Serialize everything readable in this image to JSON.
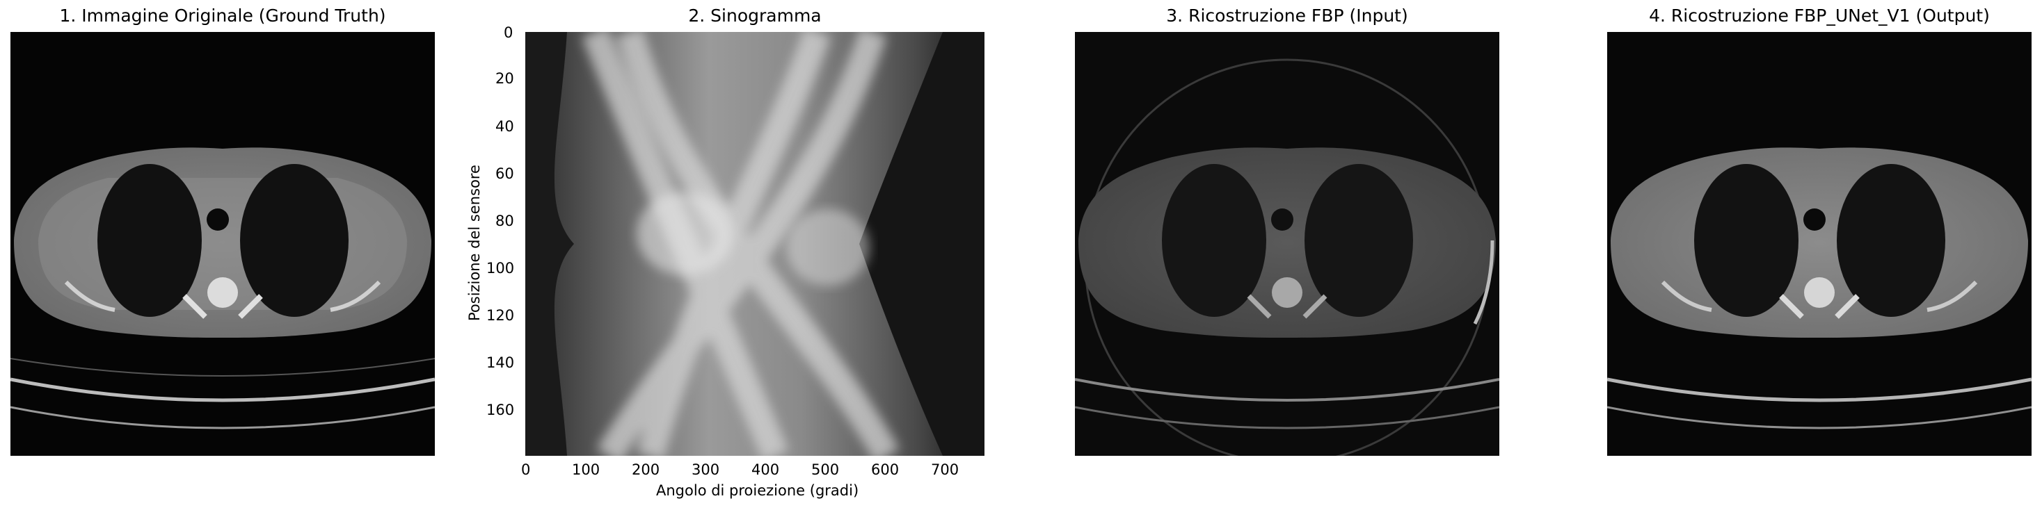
{
  "panels": [
    {
      "id": "ground-truth",
      "title": "1. Immagine Originale (Ground Truth)"
    },
    {
      "id": "sinogram",
      "title": "2. Sinogramma"
    },
    {
      "id": "fbp-input",
      "title": "3. Ricostruzione FBP (Input)"
    },
    {
      "id": "fbp-unet-output",
      "title": "4. Ricostruzione FBP_UNet_V1 (Output)"
    }
  ],
  "sinogram_axes": {
    "xlabel": "Angolo di proiezione (gradi)",
    "ylabel": "Posizione del sensore",
    "x_ticks": [
      "0",
      "100",
      "200",
      "300",
      "400",
      "500",
      "600",
      "700"
    ],
    "y_ticks": [
      "0",
      "20",
      "40",
      "60",
      "80",
      "100",
      "120",
      "140",
      "160"
    ]
  },
  "colormap": "gray"
}
